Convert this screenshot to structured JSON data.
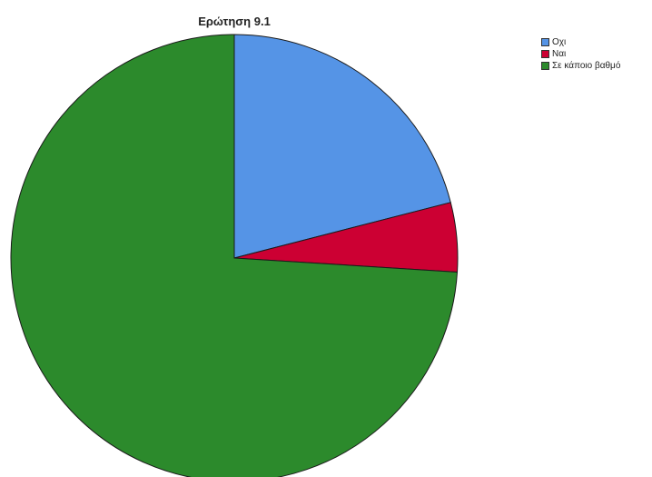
{
  "chart_data": {
    "type": "pie",
    "title": "Ερώτηση 9.1",
    "categories": [
      "Οχι",
      "Ναι",
      "Σε κάποιο βαθμό"
    ],
    "values": [
      21,
      5,
      74
    ],
    "colors": [
      "#5594e6",
      "#cc0033",
      "#2c8a2c"
    ],
    "start_angle": "12 o'clock",
    "direction": "clockwise",
    "legend_position": "top-right"
  }
}
